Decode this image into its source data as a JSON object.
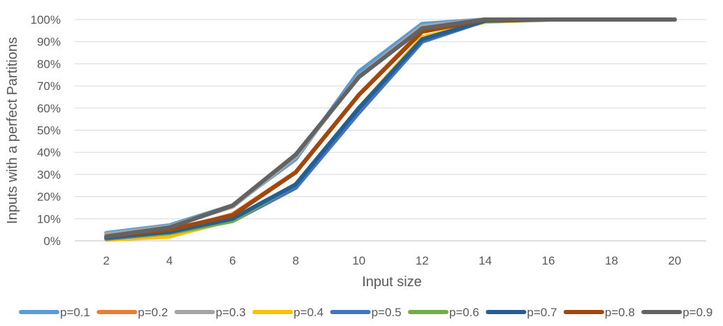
{
  "chart_data": {
    "type": "line",
    "title": "",
    "xlabel": "Input size",
    "ylabel": "Inputs with a perfect Partitions",
    "x": [
      2,
      4,
      6,
      8,
      10,
      12,
      14,
      16,
      18,
      20
    ],
    "ylim": [
      0,
      100
    ],
    "yticks": [
      "0%",
      "10%",
      "20%",
      "30%",
      "40%",
      "50%",
      "60%",
      "70%",
      "80%",
      "90%",
      "100%"
    ],
    "y_unit": "%",
    "grid": true,
    "legend_position": "bottom",
    "series": [
      {
        "name": "p=0.1",
        "color": "#5b9bd5",
        "values": [
          3.5,
          7,
          16,
          37,
          76.5,
          98,
          100,
          100,
          100,
          100
        ]
      },
      {
        "name": "p=0.2",
        "color": "#ed7d31",
        "values": [
          1,
          4,
          12,
          31,
          66,
          95,
          100,
          100,
          100,
          100
        ]
      },
      {
        "name": "p=0.3",
        "color": "#a5a5a5",
        "values": [
          3,
          6.5,
          15.5,
          38,
          74.5,
          97,
          100,
          100,
          100,
          100
        ]
      },
      {
        "name": "p=0.4",
        "color": "#ffc000",
        "values": [
          0.5,
          2,
          9.5,
          25,
          60,
          92,
          99,
          100,
          100,
          100
        ]
      },
      {
        "name": "p=0.5",
        "color": "#4472c4",
        "values": [
          1,
          3.5,
          9,
          24,
          58,
          90,
          99.5,
          100,
          100,
          100
        ]
      },
      {
        "name": "p=0.6",
        "color": "#70ad47",
        "values": [
          1.5,
          3.5,
          9,
          25.5,
          60,
          91,
          99.5,
          100,
          100,
          100
        ]
      },
      {
        "name": "p=0.7",
        "color": "#255e91",
        "values": [
          1.5,
          4,
          10,
          25.5,
          60,
          91,
          99.5,
          100,
          100,
          100
        ]
      },
      {
        "name": "p=0.8",
        "color": "#9e480e",
        "values": [
          2,
          5,
          11.5,
          31,
          66,
          94.5,
          100,
          100,
          100,
          100
        ]
      },
      {
        "name": "p=0.9",
        "color": "#636363",
        "values": [
          2,
          6,
          16,
          39,
          74,
          96,
          100,
          100,
          100,
          100
        ]
      }
    ]
  }
}
